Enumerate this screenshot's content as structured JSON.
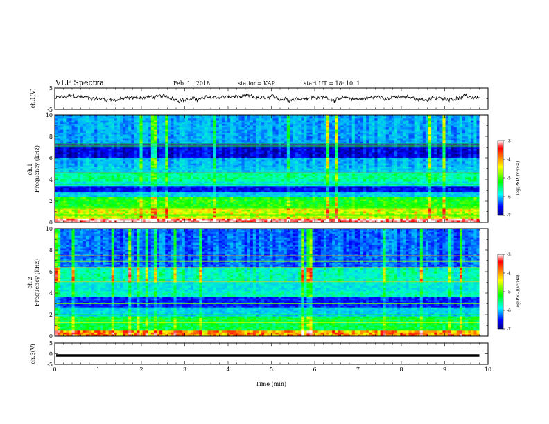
{
  "header": {
    "title": "VLF Spectra",
    "date": "Feb. 1 , 2018",
    "station": "station= KAP",
    "start": "start UT =  18: 10: 1"
  },
  "colorbar": {
    "label": "log(PSD)(V²/Hz)",
    "ticks": [
      -3,
      -4,
      -5,
      -6,
      -7
    ],
    "colors": [
      "#ffffff",
      "#ff0000",
      "#ffff00",
      "#00ff00",
      "#00ffff",
      "#0000ff",
      "#000080"
    ]
  },
  "chart_data": [
    {
      "id": "ch1-waveform",
      "type": "line",
      "ylabel": "ch.1(V)",
      "ylim": [
        -5,
        5
      ],
      "yticks": [
        5,
        -5
      ],
      "xlim": [
        0,
        10
      ],
      "baseline": 0.3,
      "noise_amplitude": 2.5,
      "data_end": 9.8
    },
    {
      "id": "ch1-spectrogram",
      "type": "heatmap",
      "ylabel": "ch.1\nFrequency (kHz)",
      "ylabel_line1": "ch.1",
      "ylabel_line2": "Frequency (kHz)",
      "ylim": [
        0,
        10
      ],
      "yticks": [
        0,
        2,
        4,
        6,
        8,
        10
      ],
      "xlim": [
        0,
        10
      ],
      "data_end": 9.8,
      "bands": [
        {
          "from": 0,
          "to": 0.3,
          "level": 0.95
        },
        {
          "from": 0.3,
          "to": 1.3,
          "level": 0.72
        },
        {
          "from": 1.3,
          "to": 2.3,
          "level": 0.6
        },
        {
          "from": 2.3,
          "to": 2.8,
          "level": 0.35
        },
        {
          "from": 2.8,
          "to": 3.3,
          "level": 0.12
        },
        {
          "from": 3.3,
          "to": 3.8,
          "level": 0.4
        },
        {
          "from": 3.8,
          "to": 4.6,
          "level": 0.5
        },
        {
          "from": 4.6,
          "to": 5.2,
          "level": 0.35
        },
        {
          "from": 5.2,
          "to": 6.0,
          "level": 0.32
        },
        {
          "from": 6.0,
          "to": 7.3,
          "level": 0.1
        },
        {
          "from": 7.3,
          "to": 10,
          "level": 0.3
        }
      ]
    },
    {
      "id": "ch2-spectrogram",
      "type": "heatmap",
      "ylabel": "ch.2\nFrequency (kHz)",
      "ylabel_line1": "ch.2",
      "ylabel_line2": "Frequency (kHz)",
      "ylim": [
        0,
        10
      ],
      "yticks": [
        0,
        2,
        4,
        6,
        8,
        10
      ],
      "xlim": [
        0,
        10
      ],
      "data_end": 9.8,
      "bands": [
        {
          "from": 0,
          "to": 0.5,
          "level": 0.8
        },
        {
          "from": 0.5,
          "to": 1.8,
          "level": 0.55
        },
        {
          "from": 1.8,
          "to": 2.6,
          "level": 0.35
        },
        {
          "from": 2.6,
          "to": 3.6,
          "level": 0.15
        },
        {
          "from": 3.6,
          "to": 4.2,
          "level": 0.45
        },
        {
          "from": 4.2,
          "to": 5.0,
          "level": 0.4
        },
        {
          "from": 5.0,
          "to": 6.4,
          "level": 0.45
        },
        {
          "from": 6.4,
          "to": 10,
          "level": 0.22
        }
      ]
    },
    {
      "id": "ch3-waveform",
      "type": "line",
      "ylabel": "ch.3(V)",
      "ylim": [
        -5,
        5
      ],
      "yticks": [
        5,
        0,
        -5
      ],
      "xlim": [
        0,
        10
      ],
      "xticks": [
        0,
        1,
        2,
        3,
        4,
        5,
        6,
        7,
        8,
        9,
        10
      ],
      "xlabel": "Time (min)",
      "constant_value": -0.8,
      "data_end": 9.8
    }
  ]
}
